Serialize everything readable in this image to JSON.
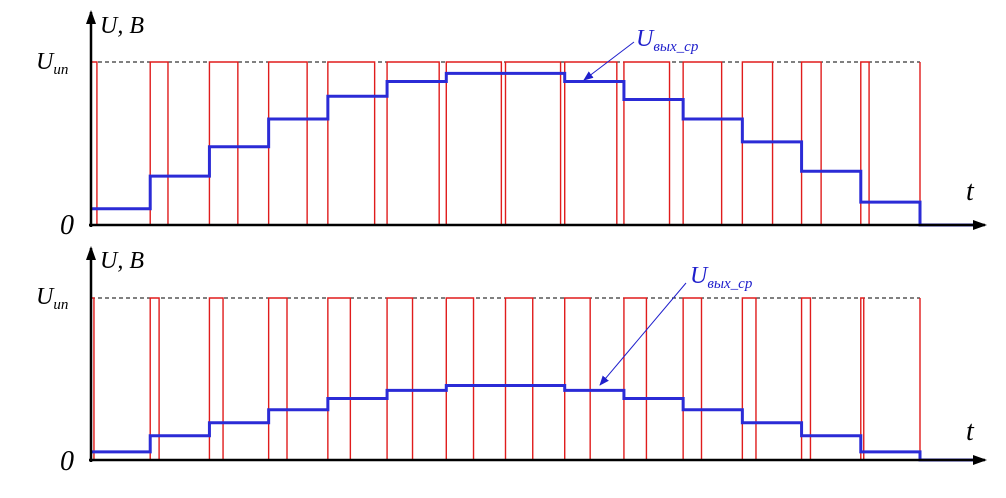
{
  "colors": {
    "pulse": "#e01c1c",
    "average": "#2b2bd6",
    "axis": "#000000",
    "annotation": "#1f1fcc"
  },
  "chart_data": [
    {
      "type": "line",
      "ylabel": "U, B",
      "xlabel": "t",
      "ytick_labels": [
        "U",
        "0"
      ],
      "ytick_sub": "ип",
      "annotation": {
        "main": "U",
        "sub": "вых_ср"
      },
      "ylim": [
        0,
        1
      ],
      "periods": 14,
      "pulse_level": 1.0,
      "duty": [
        0.1,
        0.3,
        0.48,
        0.65,
        0.79,
        0.88,
        0.93,
        0.93,
        0.88,
        0.77,
        0.65,
        0.51,
        0.33,
        0.14,
        0.0
      ],
      "average": [
        0.1,
        0.3,
        0.48,
        0.65,
        0.79,
        0.88,
        0.93,
        0.93,
        0.88,
        0.77,
        0.65,
        0.51,
        0.33,
        0.14,
        0.0
      ]
    },
    {
      "type": "line",
      "ylabel": "U, B",
      "xlabel": "t",
      "ytick_labels": [
        "U",
        "0"
      ],
      "ytick_sub": "ип",
      "annotation": {
        "main": "U",
        "sub": "вых_ср"
      },
      "ylim": [
        0,
        1
      ],
      "periods": 14,
      "pulse_level": 1.0,
      "duty": [
        0.05,
        0.15,
        0.23,
        0.31,
        0.38,
        0.43,
        0.46,
        0.46,
        0.43,
        0.38,
        0.31,
        0.23,
        0.15,
        0.05,
        0.0
      ],
      "average": [
        0.05,
        0.15,
        0.23,
        0.31,
        0.38,
        0.43,
        0.46,
        0.46,
        0.43,
        0.38,
        0.31,
        0.23,
        0.15,
        0.05,
        0.0
      ]
    }
  ]
}
